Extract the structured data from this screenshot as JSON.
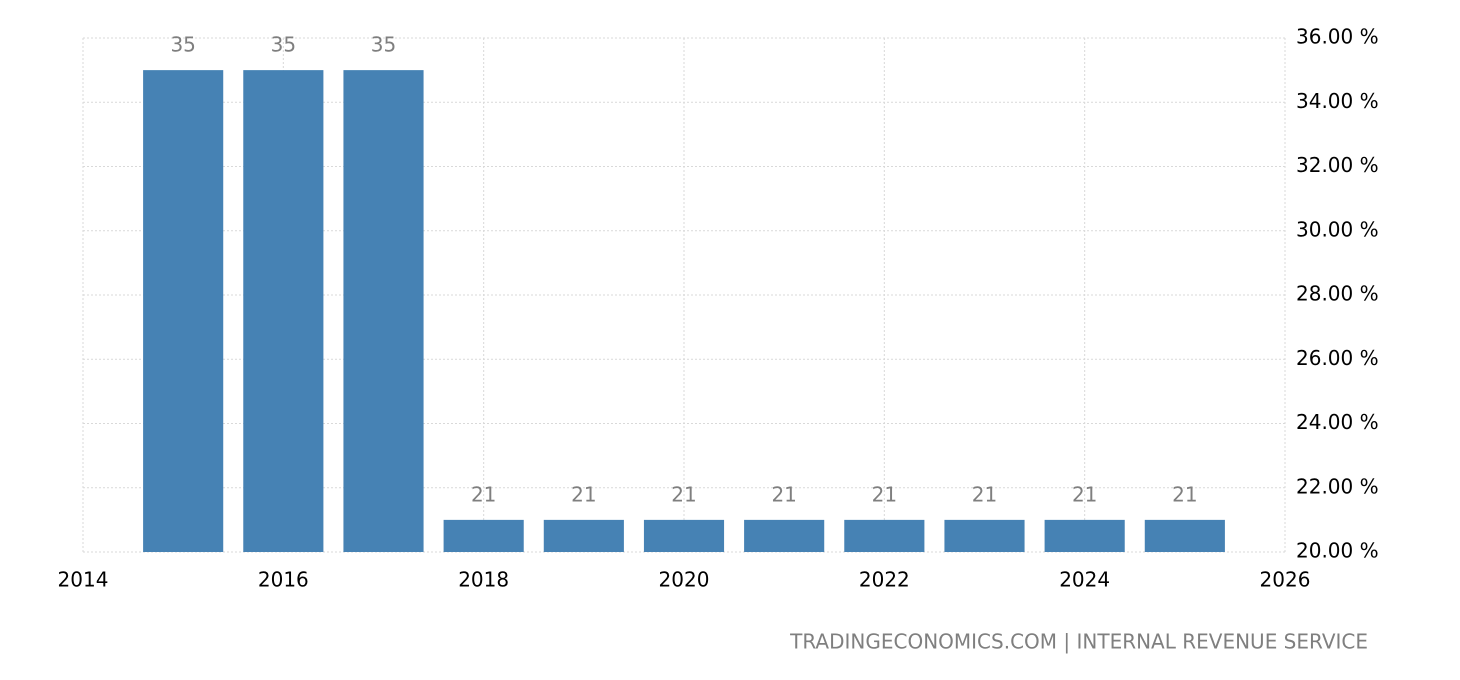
{
  "chart_data": {
    "type": "bar",
    "x": [
      2015,
      2016,
      2017,
      2018,
      2019,
      2020,
      2021,
      2022,
      2023,
      2024,
      2025
    ],
    "values": [
      35,
      35,
      35,
      21,
      21,
      21,
      21,
      21,
      21,
      21,
      21
    ],
    "color": "#4682b4",
    "xlim": [
      2014,
      2026
    ],
    "xticks": [
      2014,
      2016,
      2018,
      2020,
      2022,
      2024,
      2026
    ],
    "ylim": [
      20,
      36
    ],
    "yticks": [
      {
        "value": 20,
        "label": "20.00 %"
      },
      {
        "value": 22,
        "label": "22.00 %"
      },
      {
        "value": 24,
        "label": "24.00 %"
      },
      {
        "value": 26,
        "label": "26.00 %"
      },
      {
        "value": 28,
        "label": "28.00 %"
      },
      {
        "value": 30,
        "label": "30.00 %"
      },
      {
        "value": 32,
        "label": "32.00 %"
      },
      {
        "value": 34,
        "label": "34.00 %"
      },
      {
        "value": 36,
        "label": "36.00 %"
      }
    ],
    "grid": true,
    "source": "TRADINGECONOMICS.COM | INTERNAL REVENUE SERVICE"
  }
}
